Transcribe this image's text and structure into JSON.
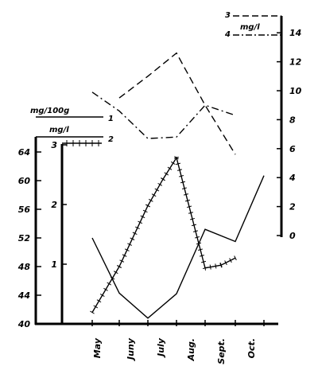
{
  "chart_data": {
    "type": "line",
    "categories": [
      "May",
      "Juny",
      "July",
      "Aug.",
      "Sept.",
      "Oct."
    ],
    "axes": {
      "left_outer": {
        "unit_label": "mg/100g",
        "ticks": [
          "40",
          "44",
          "48",
          "52",
          "56",
          "60",
          "64"
        ],
        "ylim": [
          40,
          66
        ]
      },
      "left_inner": {
        "unit_label": "mg/l",
        "ticks": [
          "1",
          "2",
          "3"
        ],
        "ylim": [
          0,
          3.2
        ]
      },
      "right": {
        "unit_label": "mg/l",
        "ticks": [
          "0",
          "2",
          "4",
          "6",
          "8",
          "10",
          "12",
          "14"
        ],
        "ylim": [
          0,
          15
        ]
      }
    },
    "series_labels": [
      "1",
      "2",
      "3",
      "4"
    ],
    "series": [
      {
        "name": "1",
        "axis": "left_outer",
        "style": "solid",
        "x": [
          "May",
          "mid-May",
          "Juny",
          "July",
          "Aug.",
          "Sept.",
          "Oct."
        ],
        "values": [
          52,
          44.3,
          40.8,
          44.2,
          53.2,
          51.5,
          60.7
        ]
      },
      {
        "name": "2",
        "axis": "left_outer",
        "style": "solid-ticked",
        "x": [
          "May",
          "mid-May",
          "Juny",
          "mid-Juny",
          "July",
          "Aug.",
          "mid-Aug.",
          "Sept."
        ],
        "values": [
          41.6,
          48,
          56.5,
          60.2,
          63.2,
          47.8,
          48.2,
          49.2
        ]
      },
      {
        "name": "3",
        "axis": "right",
        "style": "dashed",
        "x": [
          "May",
          "mid-May",
          "Juny",
          "July",
          "Aug.",
          "Sept."
        ],
        "values": [
          null,
          9.5,
          11,
          12.6,
          9,
          5.6
        ]
      },
      {
        "name": "4",
        "axis": "right",
        "style": "dash-dot",
        "x": [
          "May",
          "mid-May",
          "Juny",
          "July",
          "Aug.",
          "Sept."
        ],
        "values": [
          9.9,
          8.6,
          6.7,
          6.8,
          9,
          8.3
        ]
      }
    ]
  }
}
